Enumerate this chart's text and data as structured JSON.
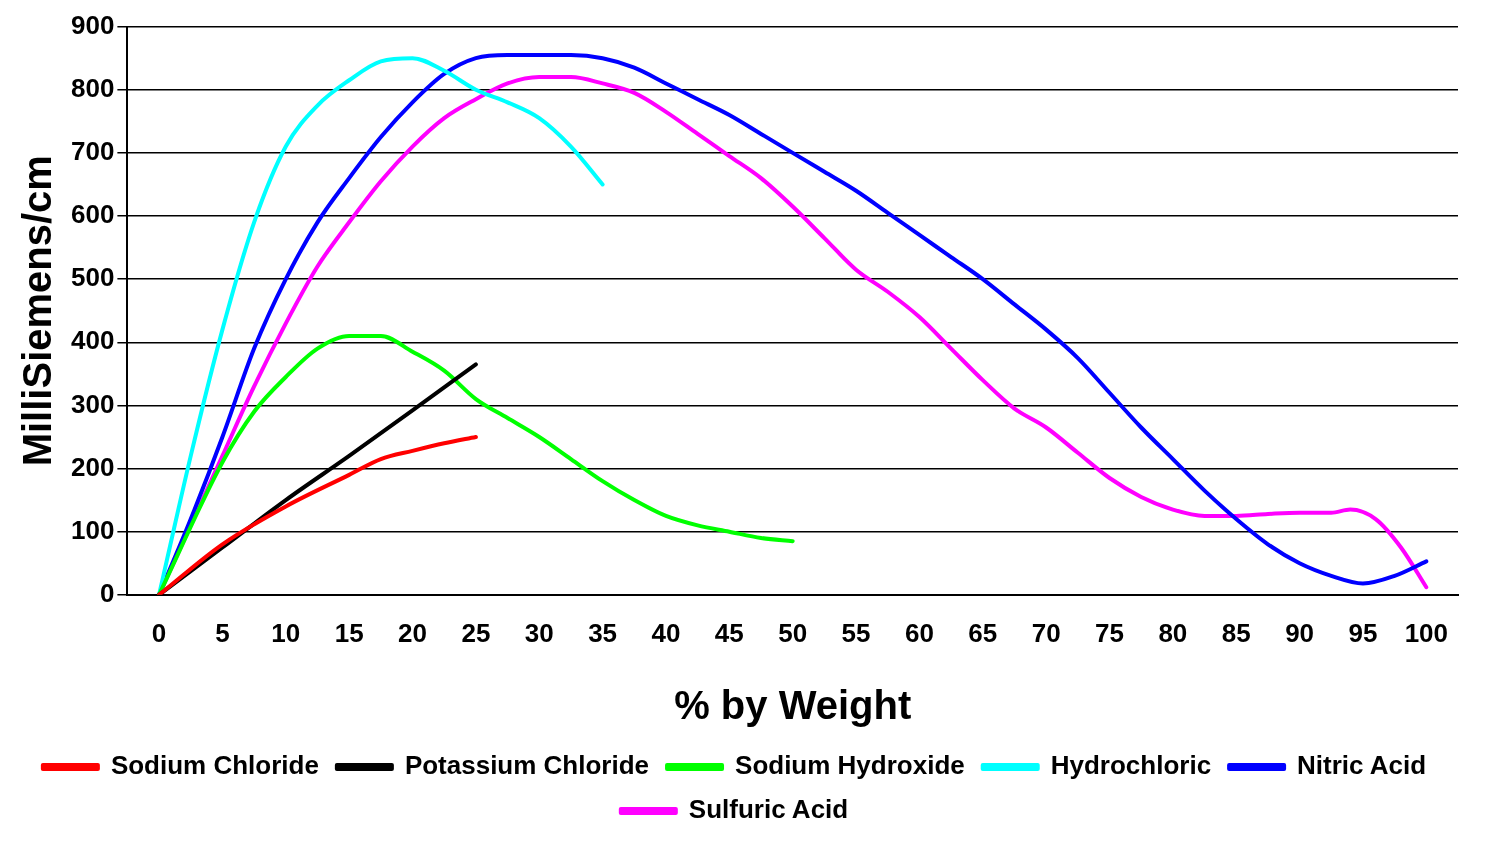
{
  "chart_data": {
    "type": "line",
    "xlabel": "% by Weight",
    "ylabel": "MilliSiemens/cm",
    "xlim": [
      -2.5,
      102.5
    ],
    "xticks": [
      0,
      5,
      10,
      15,
      20,
      25,
      30,
      35,
      40,
      45,
      50,
      55,
      60,
      65,
      70,
      75,
      80,
      85,
      90,
      95,
      100
    ],
    "ylim": [
      0,
      900
    ],
    "yticks": [
      0,
      100,
      200,
      300,
      400,
      500,
      600,
      700,
      800,
      900
    ],
    "grid": "y",
    "legend": "bottom",
    "marker": "none",
    "line_style": "solid",
    "series": [
      {
        "name": "Sodium Chloride",
        "color": "#ff0000",
        "x": [
          0,
          5,
          10,
          15,
          17.5,
          20,
          22.5,
          25
        ],
        "values": [
          0,
          80,
          140,
          190,
          215,
          228,
          240,
          250
        ]
      },
      {
        "name": "Potassium Chloride",
        "color": "#000000",
        "x": [
          0,
          5,
          10,
          15,
          20,
          25
        ],
        "values": [
          0,
          75,
          150,
          220,
          292,
          365
        ]
      },
      {
        "name": "Sodium Hydroxide",
        "color": "#00ff00",
        "x": [
          0,
          5,
          7.5,
          10,
          12.5,
          15,
          17.5,
          20,
          22.5,
          25,
          27.5,
          30,
          32.5,
          35,
          37.5,
          40,
          42.5,
          45,
          47.5,
          50
        ],
        "values": [
          0,
          210,
          290,
          345,
          390,
          410,
          410,
          385,
          355,
          310,
          280,
          250,
          215,
          180,
          150,
          125,
          110,
          100,
          90,
          85
        ]
      },
      {
        "name": "Hydrochloric",
        "color": "#00ffff",
        "x": [
          0,
          2.5,
          5,
          7.5,
          10,
          12.5,
          15,
          17.5,
          20,
          22.5,
          25,
          27.5,
          30,
          32.5,
          35
        ],
        "values": [
          0,
          220,
          420,
          590,
          710,
          775,
          815,
          845,
          850,
          830,
          800,
          780,
          755,
          710,
          650
        ]
      },
      {
        "name": "Nitric Acid",
        "color": "#0000ff",
        "x": [
          0,
          2.5,
          5,
          7.5,
          10,
          12.5,
          15,
          17.5,
          20,
          22.5,
          25,
          27.5,
          30,
          32.5,
          35,
          37.5,
          40,
          42.5,
          45,
          47.5,
          50,
          52.5,
          55,
          57.5,
          60,
          62.5,
          65,
          67.5,
          70,
          72.5,
          75,
          77.5,
          80,
          82.5,
          85,
          87.5,
          90,
          92.5,
          95,
          97.5,
          100
        ],
        "values": [
          0,
          120,
          250,
          390,
          500,
          590,
          660,
          725,
          780,
          825,
          850,
          855,
          855,
          855,
          850,
          835,
          810,
          785,
          760,
          730,
          700,
          670,
          640,
          605,
          570,
          535,
          500,
          460,
          420,
          375,
          320,
          265,
          215,
          165,
          120,
          80,
          50,
          30,
          18,
          30,
          53
        ]
      },
      {
        "name": "Sulfuric Acid",
        "color": "#ff00ff",
        "x": [
          0,
          5,
          7.5,
          10,
          12.5,
          15,
          17.5,
          20,
          22.5,
          25,
          27.5,
          30,
          32.5,
          35,
          37.5,
          40,
          42.5,
          45,
          47.5,
          50,
          52.5,
          55,
          57.5,
          60,
          62.5,
          65,
          67.5,
          70,
          72.5,
          75,
          77.5,
          80,
          82.5,
          85,
          87.5,
          90,
          92.5,
          94,
          96,
          98,
          100
        ],
        "values": [
          0,
          220,
          330,
          430,
          520,
          590,
          655,
          710,
          755,
          785,
          810,
          820,
          820,
          810,
          795,
          765,
          730,
          695,
          660,
          615,
          565,
          515,
          480,
          440,
          390,
          340,
          295,
          265,
          225,
          185,
          155,
          135,
          125,
          125,
          128,
          130,
          130,
          135,
          120,
          75,
          12
        ]
      }
    ]
  }
}
